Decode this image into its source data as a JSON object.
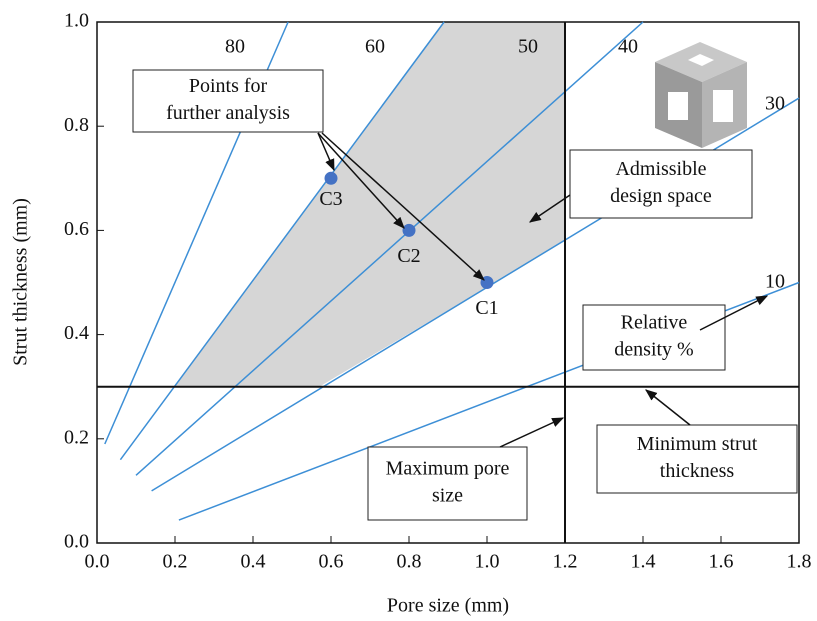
{
  "chart_data": {
    "type": "line",
    "x_label": "Pore size (mm)",
    "y_label": "Strut thickness (mm)",
    "xlim": [
      0,
      1.8
    ],
    "ylim": [
      0,
      1
    ],
    "xticks": [
      {
        "value": 0,
        "label": "0.0"
      },
      0.2,
      0.4,
      0.6,
      0.8,
      {
        "value": 1,
        "label": "1.0"
      },
      1.2,
      1.4,
      1.6,
      1.8
    ],
    "yticks": [
      {
        "value": 0,
        "label": "0.0"
      },
      0.2,
      0.4,
      0.6,
      0.8,
      {
        "value": 1,
        "label": "1.0"
      }
    ],
    "line_color": "#3d8fd6",
    "series": [
      {
        "name": "80",
        "x": [
          0.02,
          0.49
        ],
        "values": [
          0.19,
          1.0
        ]
      },
      {
        "name": "60",
        "x": [
          0.06,
          0.89
        ],
        "values": [
          0.16,
          1.0
        ]
      },
      {
        "name": "40",
        "x": [
          0.1,
          1.4
        ],
        "values": [
          0.13,
          1.0
        ]
      },
      {
        "name": "30",
        "x": [
          0.14,
          1.8
        ],
        "values": [
          0.1,
          0.854
        ]
      },
      {
        "name": "10",
        "x": [
          0.21,
          1.8
        ],
        "values": [
          0.044,
          0.5
        ]
      }
    ],
    "extra_line_label": "50",
    "region": {
      "color": "#d6d6d6",
      "x": [
        0.2,
        0.57,
        1.2,
        1.2,
        0.89
      ],
      "y": [
        0.3,
        0.3,
        0.58,
        1.0,
        1.0
      ]
    },
    "min_strut_thickness": 0.3,
    "max_pore_size": 1.2,
    "points": {
      "color": "#4472c4",
      "labels": [
        "C1",
        "C2",
        "C3"
      ],
      "x": [
        1.0,
        0.8,
        0.6
      ],
      "values": [
        0.5,
        0.6,
        0.7
      ]
    },
    "annotations": [
      [
        "Points for",
        "further analysis"
      ],
      [
        "Admissible",
        "design space"
      ],
      [
        "Relative",
        "density %"
      ],
      [
        "Maximum pore",
        "size"
      ],
      [
        "Minimum strut",
        "thickness"
      ]
    ]
  }
}
